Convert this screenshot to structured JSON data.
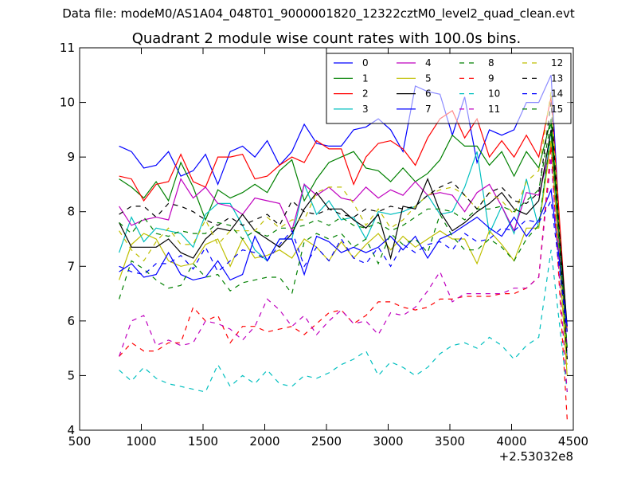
{
  "header": {
    "data_file_label": "Data file: modeM0/AS1A04_048T01_9000001820_12322cztM0_level2_quad_clean.evt"
  },
  "chart_data": {
    "type": "line",
    "title": "Quadrant 2 module wise count rates with 100.0s bins.",
    "xlabel": "",
    "ylabel": "",
    "x_offset_label": "+2.53032e8",
    "xlim": [
      500,
      4500
    ],
    "ylim": [
      4,
      11
    ],
    "xticks": [
      500,
      1000,
      1500,
      2000,
      2500,
      3000,
      3500,
      4000,
      4500
    ],
    "yticks": [
      4,
      5,
      6,
      7,
      8,
      9,
      10,
      11
    ],
    "grid": false,
    "legend_position": "top-right",
    "legend_columns": 4,
    "x": [
      820,
      920,
      1020,
      1120,
      1220,
      1320,
      1420,
      1520,
      1620,
      1720,
      1820,
      1920,
      2020,
      2120,
      2220,
      2320,
      2420,
      2520,
      2620,
      2720,
      2820,
      2920,
      3020,
      3120,
      3220,
      3320,
      3420,
      3520,
      3620,
      3720,
      3820,
      3920,
      4020,
      4120,
      4220,
      4320,
      4450
    ],
    "series": [
      {
        "name": "0",
        "color": "#0000ff",
        "dash": "solid",
        "values": [
          9.2,
          9.1,
          8.8,
          8.85,
          9.1,
          8.65,
          8.75,
          9.05,
          8.5,
          9.1,
          9.2,
          9.0,
          9.3,
          8.85,
          9.1,
          9.6,
          9.25,
          9.2,
          9.2,
          9.5,
          9.55,
          9.7,
          9.5,
          9.1,
          10.3,
          10.2,
          10.15,
          9.4,
          10.1,
          8.9,
          9.5,
          9.4,
          9.5,
          10.0,
          10.0,
          10.5,
          5.3
        ]
      },
      {
        "name": "1",
        "color": "#008000",
        "dash": "solid",
        "values": [
          8.6,
          8.45,
          8.25,
          8.55,
          8.2,
          8.9,
          8.45,
          7.85,
          8.4,
          8.25,
          8.35,
          8.5,
          8.35,
          8.75,
          8.95,
          8.2,
          8.6,
          8.9,
          9.0,
          9.1,
          8.8,
          8.75,
          8.55,
          8.8,
          8.55,
          8.7,
          8.95,
          9.4,
          9.2,
          9.2,
          8.85,
          9.1,
          8.65,
          9.1,
          8.8,
          9.7,
          5.8
        ]
      },
      {
        "name": "2",
        "color": "#ff0000",
        "dash": "solid",
        "values": [
          8.65,
          8.6,
          8.2,
          8.5,
          8.55,
          9.05,
          8.55,
          8.45,
          9.0,
          9.0,
          9.05,
          8.6,
          8.65,
          8.85,
          9.0,
          8.9,
          9.3,
          9.15,
          9.15,
          8.5,
          9.0,
          9.25,
          9.3,
          9.15,
          8.85,
          9.35,
          9.7,
          9.85,
          9.35,
          9.7,
          9.0,
          9.3,
          9.0,
          9.4,
          9.0,
          10.1,
          5.8
        ]
      },
      {
        "name": "3",
        "color": "#00bfbf",
        "dash": "solid",
        "values": [
          7.25,
          7.9,
          7.45,
          7.7,
          7.65,
          7.6,
          7.35,
          7.95,
          8.15,
          8.15,
          7.75,
          7.3,
          7.1,
          7.5,
          7.5,
          8.5,
          7.95,
          8.2,
          7.85,
          7.9,
          7.5,
          8.0,
          7.95,
          8.0,
          8.1,
          8.3,
          7.95,
          8.0,
          8.45,
          9.1,
          7.6,
          8.1,
          7.6,
          8.6,
          7.7,
          9.5,
          5.5
        ]
      },
      {
        "name": "4",
        "color": "#bf00bf",
        "dash": "solid",
        "values": [
          8.1,
          7.75,
          7.85,
          7.9,
          7.85,
          8.6,
          8.25,
          8.45,
          8.15,
          8.1,
          7.95,
          8.25,
          8.2,
          8.15,
          7.65,
          8.5,
          8.3,
          8.45,
          8.25,
          8.2,
          8.45,
          8.25,
          8.4,
          8.3,
          8.55,
          8.3,
          8.35,
          8.3,
          8.0,
          8.35,
          8.5,
          8.1,
          7.65,
          8.35,
          8.3,
          9.2,
          5.5
        ]
      },
      {
        "name": "5",
        "color": "#bfbf00",
        "dash": "solid",
        "values": [
          6.75,
          7.4,
          7.6,
          7.5,
          7.1,
          7.0,
          7.05,
          7.4,
          7.5,
          7.0,
          7.5,
          7.15,
          7.2,
          7.3,
          7.15,
          7.5,
          7.35,
          7.1,
          7.45,
          7.15,
          7.4,
          7.6,
          7.3,
          7.55,
          7.35,
          7.5,
          7.65,
          7.5,
          7.5,
          7.05,
          7.65,
          7.4,
          7.1,
          7.7,
          7.7,
          9.3,
          5.0
        ]
      },
      {
        "name": "6",
        "color": "#000000",
        "dash": "solid",
        "values": [
          7.8,
          7.35,
          7.35,
          7.35,
          7.5,
          7.25,
          7.15,
          7.5,
          7.7,
          7.65,
          7.95,
          7.65,
          7.5,
          7.35,
          7.6,
          8.05,
          8.35,
          8.05,
          8.05,
          7.85,
          7.7,
          7.95,
          7.15,
          8.1,
          8.05,
          8.6,
          8.0,
          7.65,
          7.8,
          8.0,
          8.15,
          8.35,
          8.05,
          7.95,
          8.2,
          9.5,
          5.9
        ]
      },
      {
        "name": "7",
        "color": "#0000ff",
        "dash": "solid",
        "values": [
          6.9,
          7.05,
          6.8,
          6.85,
          7.25,
          6.85,
          6.75,
          6.8,
          7.1,
          6.75,
          6.85,
          7.55,
          7.1,
          7.5,
          7.5,
          6.85,
          7.55,
          7.45,
          7.25,
          7.35,
          7.25,
          7.35,
          7.55,
          7.3,
          7.55,
          7.15,
          7.5,
          7.6,
          7.75,
          7.9,
          7.7,
          7.55,
          7.9,
          7.55,
          7.85,
          8.4,
          5.9
        ]
      },
      {
        "name": "8",
        "color": "#008000",
        "dash": "dashed",
        "values": [
          6.4,
          7.1,
          6.95,
          6.75,
          6.6,
          6.65,
          7.05,
          6.8,
          6.85,
          6.55,
          6.7,
          6.75,
          6.8,
          6.8,
          6.5,
          7.45,
          7.6,
          7.5,
          7.6,
          7.35,
          7.5,
          7.05,
          7.6,
          7.4,
          7.5,
          7.25,
          7.95,
          7.55,
          7.3,
          7.3,
          7.5,
          7.35,
          7.1,
          7.5,
          7.75,
          9.45,
          5.3
        ]
      },
      {
        "name": "9",
        "color": "#ff0000",
        "dash": "dashed",
        "values": [
          5.35,
          5.6,
          5.45,
          5.45,
          5.6,
          5.6,
          6.25,
          6.0,
          6.1,
          5.6,
          5.9,
          5.9,
          5.8,
          5.85,
          5.9,
          5.75,
          5.95,
          6.15,
          6.2,
          5.95,
          6.1,
          6.35,
          6.35,
          6.25,
          6.2,
          6.25,
          6.4,
          6.4,
          6.45,
          6.45,
          6.45,
          6.5,
          6.5,
          6.6,
          6.8,
          9.2,
          4.2
        ]
      },
      {
        "name": "10",
        "color": "#00bfbf",
        "dash": "dashed",
        "values": [
          5.1,
          4.9,
          5.15,
          4.95,
          4.85,
          4.8,
          4.75,
          4.7,
          5.2,
          4.8,
          5.0,
          4.85,
          5.1,
          4.85,
          4.8,
          5.0,
          4.95,
          5.05,
          5.2,
          5.3,
          5.45,
          5.0,
          5.25,
          5.15,
          5.0,
          5.15,
          5.4,
          5.55,
          5.6,
          5.5,
          5.7,
          5.55,
          5.3,
          5.55,
          5.7,
          7.3,
          4.7
        ]
      },
      {
        "name": "11",
        "color": "#bf00bf",
        "dash": "dashed",
        "values": [
          5.35,
          6.0,
          6.1,
          5.55,
          5.65,
          5.55,
          5.6,
          6.0,
          5.95,
          5.85,
          5.65,
          5.9,
          6.4,
          6.2,
          5.9,
          6.1,
          5.75,
          6.0,
          6.2,
          5.95,
          6.0,
          5.75,
          6.15,
          6.1,
          6.25,
          6.55,
          6.9,
          6.35,
          6.5,
          6.5,
          6.5,
          6.5,
          6.6,
          6.6,
          6.8,
          9.0,
          4.7
        ]
      },
      {
        "name": "12",
        "color": "#bfbf00",
        "dash": "dashed",
        "values": [
          7.65,
          7.3,
          7.1,
          7.45,
          7.7,
          7.4,
          7.4,
          7.85,
          7.4,
          7.65,
          7.65,
          7.65,
          7.9,
          7.7,
          7.85,
          7.85,
          8.35,
          8.45,
          8.45,
          8.15,
          7.75,
          8.05,
          7.7,
          7.85,
          8.1,
          8.3,
          8.4,
          8.45,
          8.3,
          8.05,
          8.35,
          8.2,
          7.95,
          8.55,
          8.75,
          10.2,
          5.2
        ]
      },
      {
        "name": "13",
        "color": "#000000",
        "dash": "dashed",
        "values": [
          7.95,
          8.1,
          8.1,
          7.9,
          8.15,
          8.1,
          8.0,
          7.85,
          7.75,
          7.9,
          7.75,
          7.85,
          7.95,
          7.75,
          8.2,
          8.0,
          7.95,
          8.05,
          7.95,
          7.9,
          8.05,
          8.0,
          8.1,
          8.05,
          8.1,
          8.3,
          8.45,
          8.55,
          8.3,
          8.05,
          8.35,
          8.45,
          8.2,
          8.15,
          8.35,
          10.0,
          5.3
        ]
      },
      {
        "name": "14",
        "color": "#0000ff",
        "dash": "dashed",
        "values": [
          7.0,
          6.9,
          6.85,
          7.05,
          7.05,
          7.2,
          6.95,
          7.35,
          6.9,
          7.1,
          7.3,
          7.25,
          7.1,
          7.4,
          7.65,
          7.0,
          7.35,
          7.1,
          7.5,
          7.15,
          7.05,
          7.35,
          7.0,
          7.4,
          7.25,
          7.4,
          7.45,
          7.3,
          7.6,
          7.45,
          7.5,
          7.7,
          7.65,
          7.85,
          7.8,
          8.2,
          5.8
        ]
      },
      {
        "name": "15",
        "color": "#008000",
        "dash": "dashed",
        "values": [
          7.8,
          7.6,
          7.9,
          7.6,
          7.55,
          7.65,
          7.6,
          7.6,
          7.8,
          7.75,
          7.5,
          7.65,
          7.55,
          7.7,
          7.7,
          7.75,
          7.85,
          7.75,
          7.9,
          7.75,
          7.7,
          7.8,
          7.65,
          7.75,
          7.9,
          8.05,
          8.05,
          8.0,
          7.85,
          8.05,
          8.05,
          8.1,
          8.0,
          8.2,
          8.4,
          9.65,
          5.5
        ]
      }
    ]
  }
}
